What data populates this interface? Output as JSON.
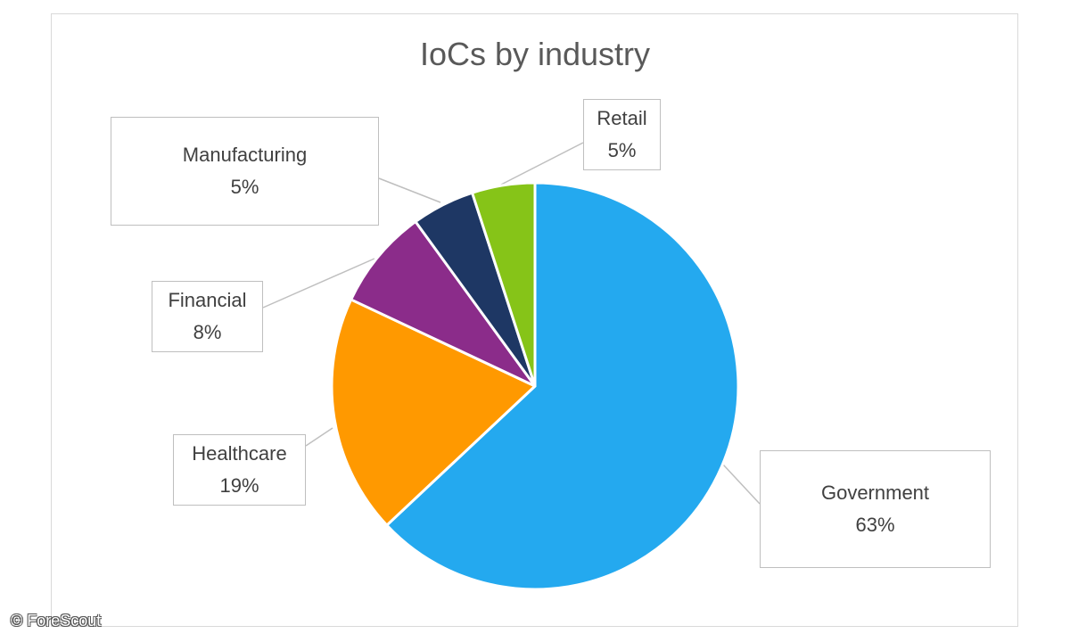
{
  "chart_data": {
    "type": "pie",
    "title": "IoCs by industry",
    "categories": [
      "Government",
      "Healthcare",
      "Financial",
      "Manufacturing",
      "Retail"
    ],
    "values": [
      63,
      19,
      8,
      5,
      5
    ],
    "value_labels": [
      "63%",
      "19%",
      "8%",
      "5%",
      "5%"
    ],
    "colors": [
      "#24A9EF",
      "#FF9900",
      "#8B2C8A",
      "#1E3764",
      "#86C418"
    ],
    "legend": "none",
    "data_labels": "callouts"
  },
  "watermark": "© ForeScout"
}
